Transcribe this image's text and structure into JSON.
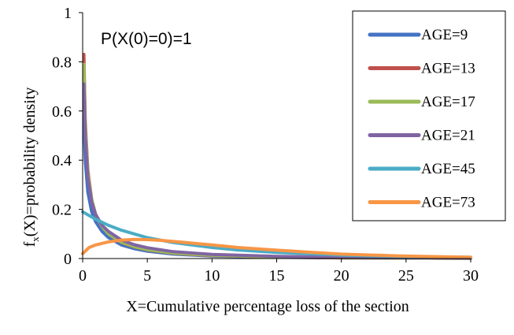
{
  "chart_data": {
    "type": "line",
    "title": "",
    "annotation": "P(X(0)=0)=1",
    "xlabel": "X=Cumulative percentage loss of the section",
    "ylabel_main": "f",
    "ylabel_sub": "x",
    "ylabel_rest": "(X)=probability density",
    "xlim": [
      0,
      30
    ],
    "ylim": [
      0,
      1
    ],
    "xticks": [
      "0",
      "5",
      "10",
      "15",
      "20",
      "25",
      "30"
    ],
    "yticks": [
      "0",
      "0.2",
      "0.4",
      "0.6",
      "0.8",
      "1"
    ],
    "grid": false,
    "legend_position": "top-right",
    "series": [
      {
        "name": "AGE=9",
        "color": "#4472C4",
        "x": [
          0.1,
          0.2,
          0.4,
          0.7,
          1,
          1.5,
          2,
          3,
          4,
          5,
          7,
          10,
          15,
          20,
          25,
          30
        ],
        "y": [
          0.58,
          0.4,
          0.27,
          0.19,
          0.15,
          0.11,
          0.085,
          0.055,
          0.04,
          0.03,
          0.018,
          0.01,
          0.005,
          0.003,
          0.002,
          0.001
        ]
      },
      {
        "name": "AGE=13",
        "color": "#C0504D",
        "x": [
          0.1,
          0.2,
          0.4,
          0.7,
          1,
          1.5,
          2,
          3,
          4,
          5,
          7,
          10,
          15,
          20,
          25,
          30
        ],
        "y": [
          0.83,
          0.56,
          0.36,
          0.24,
          0.18,
          0.13,
          0.1,
          0.065,
          0.047,
          0.035,
          0.021,
          0.012,
          0.006,
          0.003,
          0.002,
          0.001
        ]
      },
      {
        "name": "AGE=17",
        "color": "#9BBB59",
        "x": [
          0.1,
          0.2,
          0.4,
          0.7,
          1,
          1.5,
          2,
          3,
          4,
          5,
          7,
          10,
          15,
          20,
          25,
          30
        ],
        "y": [
          0.79,
          0.54,
          0.35,
          0.24,
          0.18,
          0.13,
          0.1,
          0.066,
          0.048,
          0.036,
          0.022,
          0.013,
          0.006,
          0.004,
          0.002,
          0.001
        ]
      },
      {
        "name": "AGE=21",
        "color": "#8064A2",
        "x": [
          0.1,
          0.2,
          0.4,
          0.7,
          1,
          1.5,
          2,
          3,
          4,
          5,
          7,
          10,
          15,
          20,
          25,
          30
        ],
        "y": [
          0.71,
          0.5,
          0.33,
          0.23,
          0.18,
          0.135,
          0.11,
          0.075,
          0.056,
          0.044,
          0.028,
          0.017,
          0.009,
          0.005,
          0.003,
          0.002
        ]
      },
      {
        "name": "AGE=45",
        "color": "#4BACC6",
        "x": [
          0,
          1,
          2,
          3,
          4,
          5,
          7,
          10,
          12,
          15,
          20,
          25,
          30
        ],
        "y": [
          0.19,
          0.16,
          0.135,
          0.115,
          0.1,
          0.085,
          0.065,
          0.045,
          0.035,
          0.025,
          0.014,
          0.008,
          0.005
        ]
      },
      {
        "name": "AGE=73",
        "color": "#F79646",
        "x": [
          0,
          0.5,
          1,
          2,
          3,
          4,
          5,
          6,
          8,
          10,
          12,
          15,
          20,
          25,
          30
        ],
        "y": [
          0.02,
          0.045,
          0.055,
          0.068,
          0.075,
          0.078,
          0.077,
          0.074,
          0.065,
          0.055,
          0.045,
          0.034,
          0.018,
          0.01,
          0.005
        ]
      }
    ]
  }
}
